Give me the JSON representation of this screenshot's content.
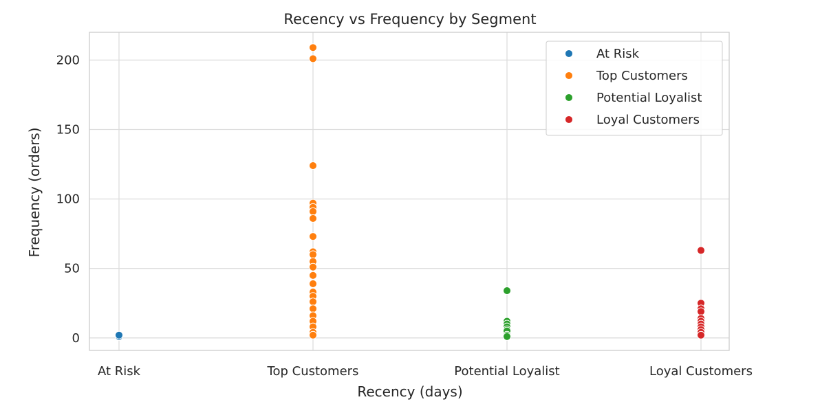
{
  "chart_data": {
    "type": "scatter",
    "title": "Recency vs Frequency by Segment",
    "xlabel": "Recency (days)",
    "ylabel": "Frequency (orders)",
    "categories": [
      "At Risk",
      "Top Customers",
      "Potential Loyalist",
      "Loyal Customers"
    ],
    "ylim": [
      -9,
      220
    ],
    "yticks": [
      0,
      50,
      100,
      150,
      200
    ],
    "grid": true,
    "legend_position": "top-right",
    "series": [
      {
        "name": "At Risk",
        "color": "#1f77b4",
        "x": "At Risk",
        "values": [
          1,
          2
        ]
      },
      {
        "name": "Top Customers",
        "color": "#ff7f0e",
        "x": "Top Customers",
        "values": [
          209,
          201,
          124,
          97,
          94,
          91,
          86,
          73,
          62,
          60,
          55,
          51,
          45,
          39,
          33,
          30,
          26,
          21,
          16,
          12,
          8,
          4,
          2
        ]
      },
      {
        "name": "Potential Loyalist",
        "color": "#2ca02c",
        "x": "Potential Loyalist",
        "values": [
          34,
          12,
          10,
          8,
          6,
          5,
          2,
          1
        ]
      },
      {
        "name": "Loyal Customers",
        "color": "#d62728",
        "x": "Loyal Customers",
        "values": [
          63,
          25,
          21,
          19,
          14,
          12,
          10,
          8,
          6,
          4,
          2
        ]
      }
    ]
  }
}
